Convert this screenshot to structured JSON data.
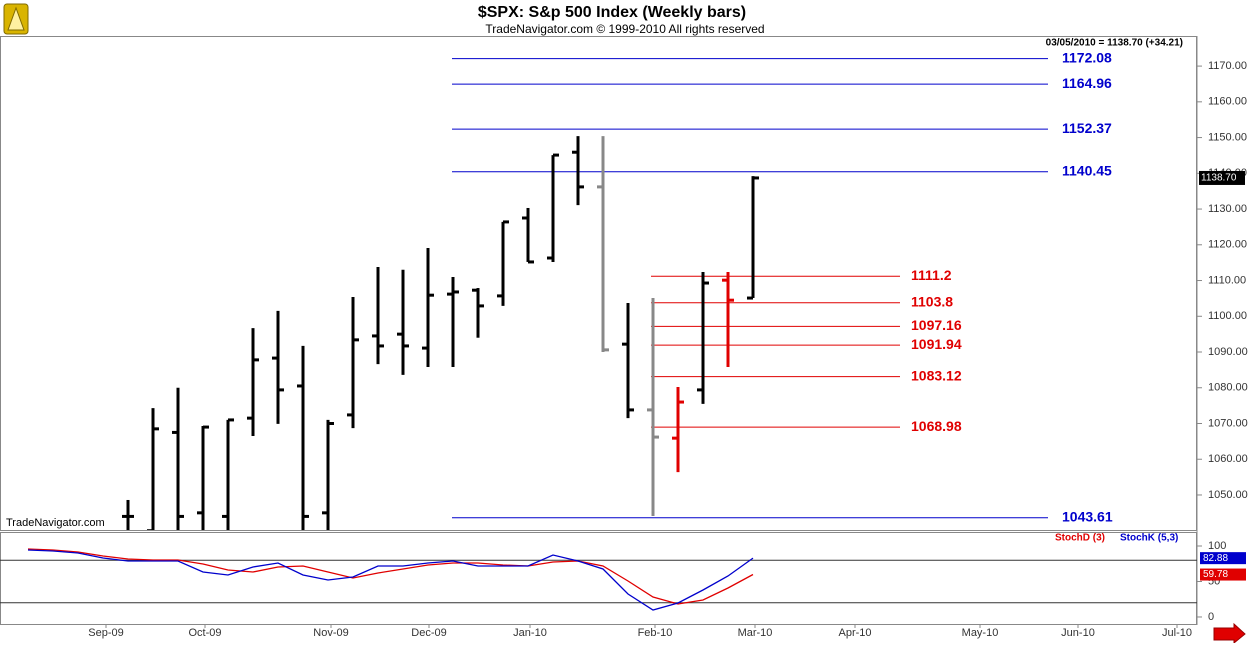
{
  "chart_data": [
    {
      "type": "ohlc",
      "title": "$SPX:  S&p 500 Index  (Weekly bars)",
      "subtitle": "TradeNavigator.com © 1999-2010 All rights reserved",
      "annotation": "03/05/2010 = 1138.70 (+34.21)",
      "watermark": "TradeNavigator.com",
      "last_price_label": "1138.70",
      "x": [
        0,
        1,
        2,
        3,
        4,
        5,
        6,
        7,
        8,
        9,
        10,
        11,
        12,
        13,
        14,
        15,
        16,
        17,
        18,
        19,
        20,
        21,
        22,
        23,
        24,
        25
      ],
      "open": [
        1044,
        1040,
        1067.5,
        1045,
        1044,
        1071.5,
        1088.3,
        1080.5,
        1045,
        1072.4,
        1094.5,
        1095,
        1091.1,
        1106.2,
        1107.3,
        1105.7,
        1127.5,
        1116.3,
        1145.9,
        1136.2,
        1092.2,
        1073.8,
        1065.9,
        1079.4,
        1110.1,
        1105.1
      ],
      "high": [
        1048.6,
        1074.3,
        1080,
        1069.3,
        1071,
        1096.7,
        1101.5,
        1091.7,
        1071,
        1105.4,
        1113.8,
        1113,
        1119.1,
        1111,
        1107.9,
        1126.4,
        1130.3,
        1145.1,
        1150.4,
        1150.4,
        1103.7,
        1105.1,
        1080.2,
        1112.4,
        1112.4,
        1139.2
      ],
      "low": [
        1035,
        1036,
        1036,
        1035,
        1035,
        1066.5,
        1069.9,
        1035,
        1035,
        1068.7,
        1086.6,
        1083.6,
        1085.8,
        1085.8,
        1094,
        1102.9,
        1115.2,
        1115.2,
        1131.1,
        1090,
        1071.5,
        1044.1,
        1056.4,
        1075.5,
        1085.8,
        1105.1
      ],
      "close": [
        1044,
        1068.5,
        1044,
        1069,
        1071,
        1087.8,
        1079.4,
        1044,
        1070,
        1093.4,
        1091.7,
        1091.7,
        1105.9,
        1106.8,
        1102.9,
        1126.4,
        1115.2,
        1145.1,
        1136.2,
        1090.6,
        1073.8,
        1066.2,
        1076,
        1109.3,
        1104.5,
        1138.7
      ],
      "colors": [
        "#000000",
        "#000000",
        "#000000",
        "#000000",
        "#000000",
        "#000000",
        "#000000",
        "#000000",
        "#000000",
        "#000000",
        "#000000",
        "#000000",
        "#000000",
        "#000000",
        "#000000",
        "#000000",
        "#000000",
        "#000000",
        "#000000",
        "#888888",
        "#000000",
        "#888888",
        "#e00000",
        "#000000",
        "#e00000",
        "#000000"
      ],
      "levels": [
        {
          "color": "#0000cc",
          "values": [
            1172.08,
            1164.96,
            1152.37,
            1140.45,
            1043.61
          ]
        },
        {
          "color": "#e00000",
          "values": [
            1111.2,
            1103.8,
            1097.16,
            1091.94,
            1083.12,
            1068.98
          ]
        }
      ],
      "xlim": [
        -5.12,
        42.76
      ],
      "ylim": [
        1040.2,
        1175.9
      ],
      "yticks": [
        {
          "value": 1050,
          "label": "1050.00"
        },
        {
          "value": 1060,
          "label": "1060.00"
        },
        {
          "value": 1070,
          "label": "1070.00"
        },
        {
          "value": 1080,
          "label": "1080.00"
        },
        {
          "value": 1090,
          "label": "1090.00"
        },
        {
          "value": 1100,
          "label": "1100.00"
        },
        {
          "value": 1110,
          "label": "1110.00"
        },
        {
          "value": 1120,
          "label": "1120.00"
        },
        {
          "value": 1130,
          "label": "1130.00"
        },
        {
          "value": 1140,
          "label": "1140.00"
        },
        {
          "value": 1150,
          "label": "1150.00"
        },
        {
          "value": 1160,
          "label": "1160.00"
        },
        {
          "value": 1170,
          "label": "1170.00"
        }
      ]
    },
    {
      "type": "line",
      "x": [
        -4,
        -3,
        -2,
        -1,
        0,
        1,
        2,
        3,
        4,
        5,
        6,
        7,
        8,
        9,
        10,
        11,
        12,
        13,
        14,
        15,
        16,
        17,
        18,
        19,
        20,
        21,
        22,
        23,
        24,
        25
      ],
      "series": [
        {
          "name": "StochD (3)",
          "color": "#e00000",
          "values": [
            95.8,
            94.4,
            91.5,
            85.9,
            81.7,
            80.3,
            80.3,
            74.6,
            66.2,
            63.4,
            70.4,
            71.8,
            63.4,
            54.9,
            62,
            67.6,
            73.2,
            76.1,
            76.1,
            73.2,
            71.8,
            77.5,
            78.9,
            71.8,
            50.7,
            28.2,
            18.3,
            23.9,
            40.8,
            59.78
          ]
        },
        {
          "name": "StochK (5,3)",
          "color": "#0000cc",
          "values": [
            94.4,
            93.0,
            90.1,
            83.1,
            78.9,
            78.9,
            78.9,
            63.4,
            59.2,
            70.4,
            76.1,
            59.2,
            52.1,
            56.3,
            71.8,
            71.8,
            76.1,
            78.9,
            71.8,
            71.8,
            71.8,
            87.3,
            78.9,
            67.6,
            32.4,
            9.9,
            19.7,
            38.0,
            57.7,
            82.88
          ]
        }
      ],
      "levels": [
        80,
        20
      ],
      "xlim": [
        -5.12,
        42.76
      ],
      "ylim": [
        -11.3,
        118.3
      ],
      "yticks": [
        0,
        50,
        100
      ],
      "xticks": [
        {
          "value": -0.88,
          "label": "Sep-09"
        },
        {
          "value": 3.08,
          "label": "Oct-09"
        },
        {
          "value": 8.12,
          "label": "Nov-09"
        },
        {
          "value": 12.04,
          "label": "Dec-09"
        },
        {
          "value": 16.08,
          "label": "Jan-10"
        },
        {
          "value": 21.08,
          "label": "Feb-10"
        },
        {
          "value": 25.08,
          "label": "Mar-10"
        },
        {
          "value": 29.08,
          "label": "Apr-10"
        },
        {
          "value": 34.08,
          "label": "May-10"
        },
        {
          "value": 38,
          "label": "Jun-10"
        },
        {
          "value": 41.96,
          "label": "Jul-10"
        }
      ]
    }
  ]
}
